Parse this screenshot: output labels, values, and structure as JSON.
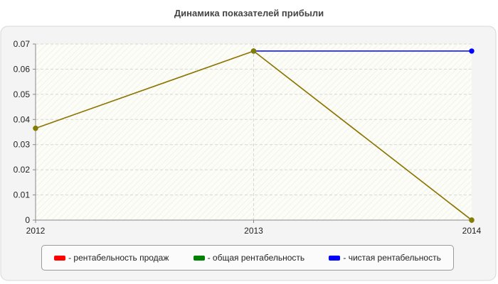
{
  "chart_data": {
    "type": "line",
    "title": "Динамика показателей прибыли",
    "x": [
      "2012",
      "2013",
      "2014"
    ],
    "ylim": [
      0,
      0.07
    ],
    "yticks": [
      "0",
      "0.01",
      "0.02",
      "0.03",
      "0.04",
      "0.05",
      "0.06",
      "0.07"
    ],
    "grid": true,
    "legend_position": "bottom",
    "series": [
      {
        "name": "- рентабельность продаж",
        "color": "#ff0000",
        "values": [
          0.0365,
          0.0672,
          0
        ]
      },
      {
        "name": "- общая рентабельность",
        "color": "#008000",
        "values": [
          0.0365,
          0.0672,
          0
        ]
      },
      {
        "name": "- чистая рентабельность",
        "color": "#0000ff",
        "values": [
          null,
          0.0672,
          0.0672
        ]
      }
    ],
    "visible_line_color": "#808000"
  }
}
